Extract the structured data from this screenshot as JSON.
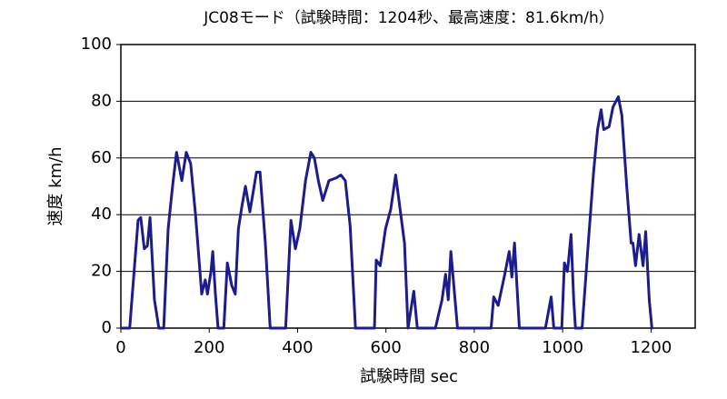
{
  "chart_data": {
    "type": "line",
    "title": "JC08モード（試験時間：1204秒、最高速度：81.6km/h）",
    "x_label": "試験時間 sec",
    "y_label": "速度 km/h",
    "color": "#1c1c8c",
    "grid": true,
    "xlim": [
      0,
      1300
    ],
    "xticks": [
      0,
      200,
      400,
      600,
      800,
      1000,
      1200
    ],
    "ylim": [
      0,
      100
    ],
    "yticks": [
      0,
      20,
      40,
      60,
      80,
      100
    ],
    "x": [
      0,
      20,
      39,
      45,
      53,
      60,
      66,
      76,
      86,
      97,
      107,
      117,
      126,
      138,
      148,
      158,
      169,
      183,
      191,
      196,
      204,
      208,
      214,
      220,
      233,
      241,
      251,
      259,
      266,
      274,
      282,
      292,
      307,
      315,
      327,
      338,
      373,
      385,
      395,
      405,
      418,
      430,
      438,
      447,
      457,
      471,
      488,
      498,
      508,
      519,
      531,
      574,
      578,
      587,
      599,
      611,
      622,
      632,
      642,
      650,
      663,
      671,
      712,
      727,
      735,
      741,
      747,
      762,
      838,
      844,
      854,
      869,
      879,
      885,
      891,
      902,
      961,
      974,
      980,
      998,
      1004,
      1011,
      1019,
      1025,
      1029,
      1044,
      1058,
      1070,
      1079,
      1087,
      1093,
      1105,
      1114,
      1126,
      1134,
      1145,
      1155,
      1159,
      1165,
      1173,
      1182,
      1188,
      1196,
      1202,
      1204
    ],
    "values": [
      0,
      0,
      38,
      39,
      28,
      29,
      39,
      10,
      0,
      0,
      35,
      50,
      62,
      52,
      62,
      58,
      40,
      12,
      17,
      12,
      20,
      27,
      12,
      0,
      0,
      23,
      15,
      12,
      35,
      43,
      50,
      41,
      55,
      55,
      30,
      0,
      0,
      38,
      28,
      35,
      52,
      62,
      60,
      52,
      45,
      52,
      53,
      54,
      52,
      36,
      0,
      0,
      24,
      22,
      35,
      42,
      54,
      42,
      30,
      0,
      13,
      0,
      0,
      10,
      19,
      10,
      27,
      0,
      0,
      11,
      8,
      19,
      27,
      18,
      30,
      0,
      0,
      11,
      0,
      0,
      23,
      20,
      33,
      10,
      0,
      0,
      30,
      55,
      70,
      77,
      70,
      71,
      78,
      81.6,
      75,
      50,
      30,
      30,
      22,
      33,
      22,
      34,
      10,
      0,
      0
    ]
  }
}
